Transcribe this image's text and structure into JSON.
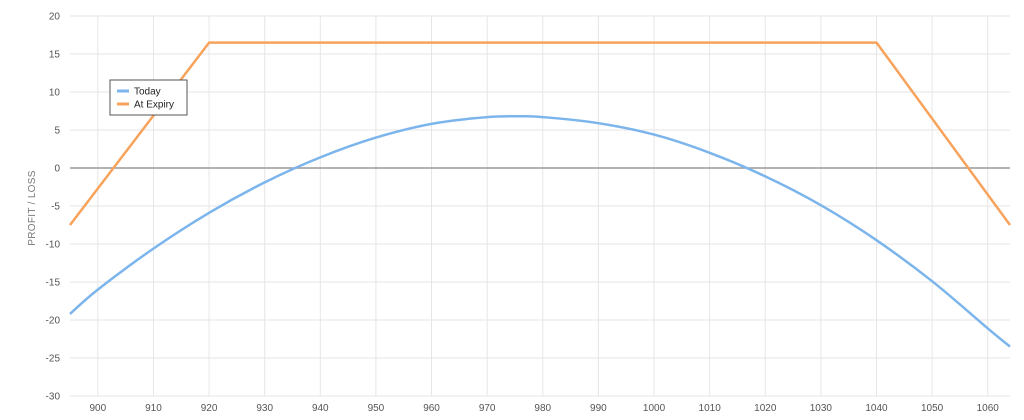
{
  "chart_data": {
    "type": "line",
    "title": "",
    "xlabel": "",
    "ylabel": "PROFIT / LOSS",
    "xlim": [
      895,
      1064
    ],
    "ylim": [
      -30,
      20
    ],
    "x_ticks": [
      900,
      910,
      920,
      930,
      940,
      950,
      960,
      970,
      980,
      990,
      1000,
      1010,
      1020,
      1030,
      1040,
      1050,
      1060
    ],
    "y_ticks": [
      20,
      15,
      10,
      5,
      0,
      -5,
      -10,
      -15,
      -20,
      -25,
      -30
    ],
    "grid": true,
    "zero_line": true,
    "legend": {
      "position": "top-left"
    },
    "series": [
      {
        "name": "Today",
        "color": "#7cb5ec",
        "points": [
          [
            895,
            -19.2
          ],
          [
            900,
            -16.0
          ],
          [
            910,
            -10.6
          ],
          [
            920,
            -5.9
          ],
          [
            930,
            -1.9
          ],
          [
            940,
            1.4
          ],
          [
            950,
            4.0
          ],
          [
            960,
            5.8
          ],
          [
            970,
            6.7
          ],
          [
            976,
            6.8
          ],
          [
            980,
            6.7
          ],
          [
            990,
            5.9
          ],
          [
            1000,
            4.4
          ],
          [
            1010,
            2.0
          ],
          [
            1020,
            -1.1
          ],
          [
            1030,
            -4.9
          ],
          [
            1040,
            -9.5
          ],
          [
            1050,
            -14.9
          ],
          [
            1060,
            -21.1
          ],
          [
            1064,
            -23.5
          ]
        ]
      },
      {
        "name": "At Expiry",
        "color": "#f7a35c",
        "points": [
          [
            895,
            -7.5
          ],
          [
            920,
            16.5
          ],
          [
            1040,
            16.5
          ],
          [
            1064,
            -7.5
          ]
        ]
      }
    ]
  }
}
